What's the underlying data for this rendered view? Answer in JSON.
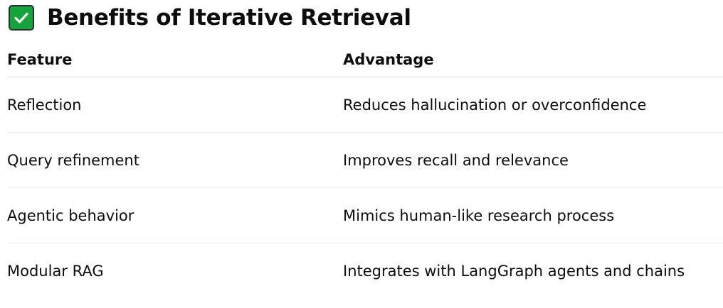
{
  "heading": {
    "icon": "check-mark-button-icon",
    "title": "Benefits of Iterative Retrieval"
  },
  "table": {
    "columns": [
      "Feature",
      "Advantage"
    ],
    "rows": [
      {
        "feature": "Reflection",
        "advantage": "Reduces hallucination or overconfidence"
      },
      {
        "feature": "Query refinement",
        "advantage": "Improves recall and relevance"
      },
      {
        "feature": "Agentic behavior",
        "advantage": "Mimics human-like research process"
      },
      {
        "feature": "Modular RAG",
        "advantage": "Integrates with LangGraph agents and chains"
      }
    ]
  },
  "colors": {
    "icon_background": "#15a33b",
    "text": "#0d0d0d",
    "row_divider": "#ececec"
  }
}
